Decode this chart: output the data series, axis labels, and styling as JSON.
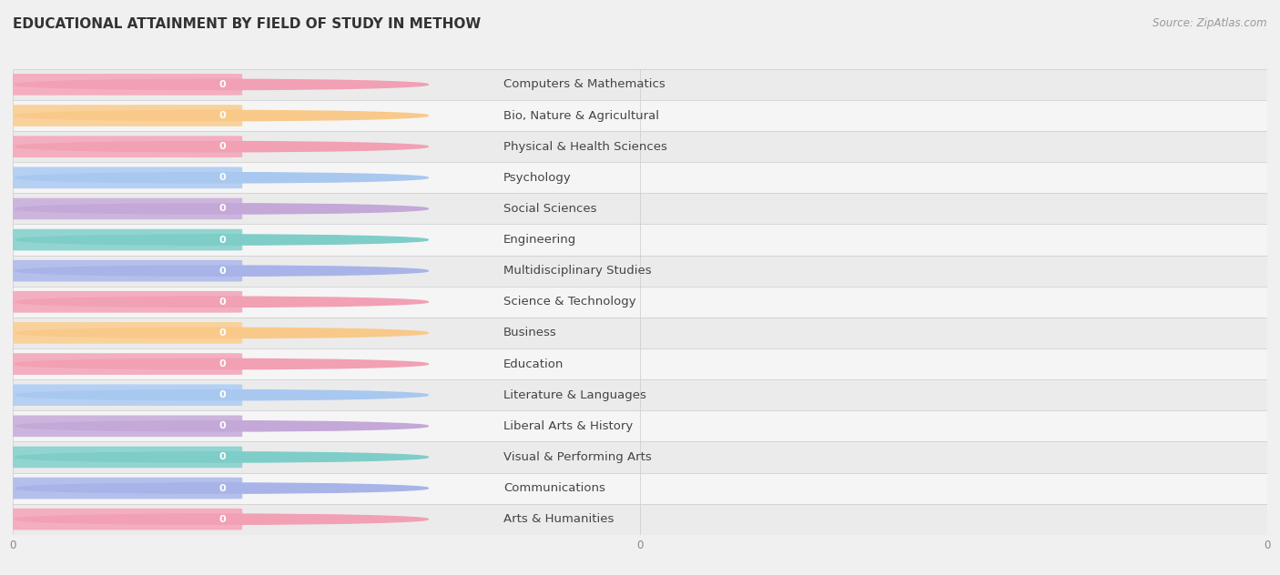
{
  "title": "EDUCATIONAL ATTAINMENT BY FIELD OF STUDY IN METHOW",
  "source": "Source: ZipAtlas.com",
  "categories": [
    "Computers & Mathematics",
    "Bio, Nature & Agricultural",
    "Physical & Health Sciences",
    "Psychology",
    "Social Sciences",
    "Engineering",
    "Multidisciplinary Studies",
    "Science & Technology",
    "Business",
    "Education",
    "Literature & Languages",
    "Liberal Arts & History",
    "Visual & Performing Arts",
    "Communications",
    "Arts & Humanities"
  ],
  "values": [
    0,
    0,
    0,
    0,
    0,
    0,
    0,
    0,
    0,
    0,
    0,
    0,
    0,
    0,
    0
  ],
  "bar_colors": [
    "#F2A0B4",
    "#F9C98A",
    "#F2A0B4",
    "#A8C8F0",
    "#C4A8D8",
    "#7ECDC8",
    "#A8B4E8",
    "#F2A0B4",
    "#F9C98A",
    "#F2A0B4",
    "#A8C8F0",
    "#C4A8D8",
    "#7ECDC8",
    "#A8B4E8",
    "#F2A0B4"
  ],
  "background_color": "#f0f0f0",
  "row_bg_even": "#f0f0f0",
  "row_bg_odd": "#e8e8e8",
  "title_fontsize": 11,
  "label_fontsize": 9.5,
  "source_fontsize": 8.5
}
